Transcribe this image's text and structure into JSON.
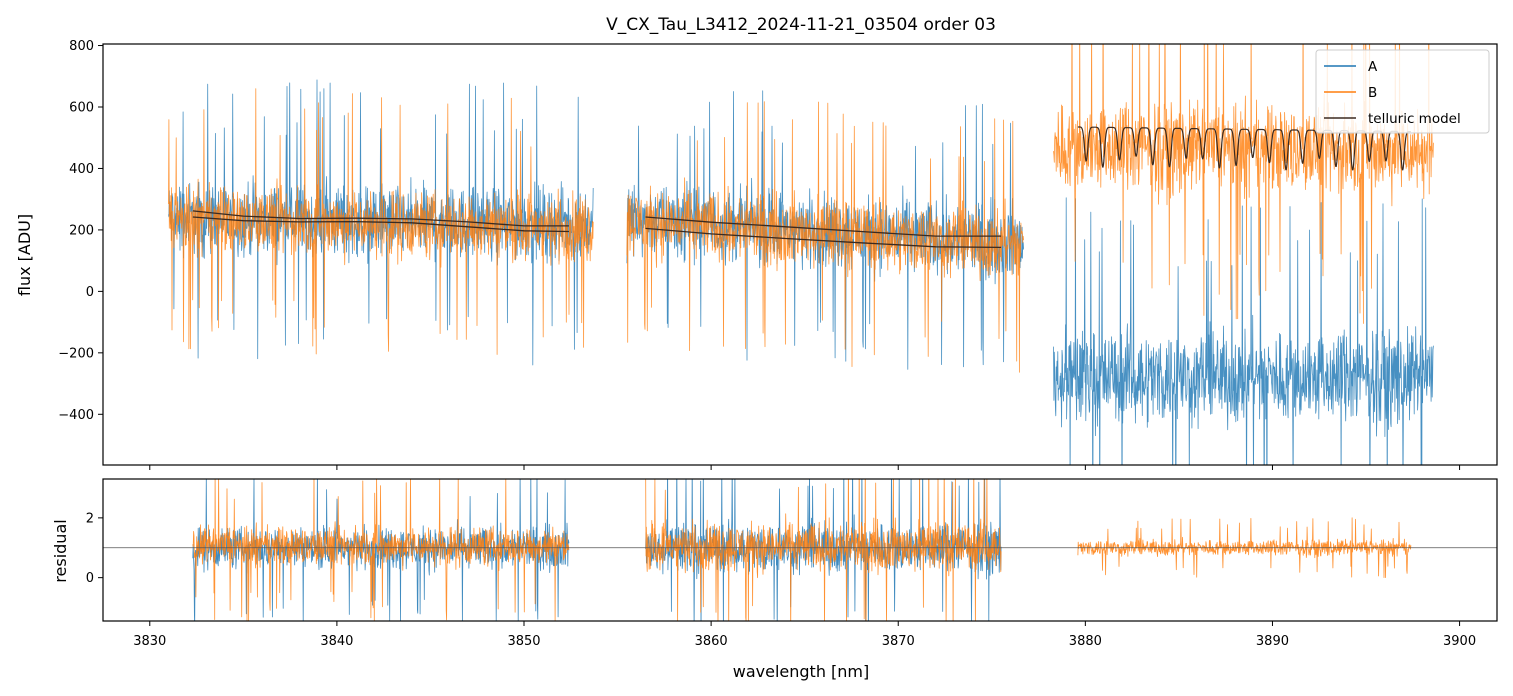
{
  "colors": {
    "series_a": "#1f77b4",
    "series_b": "#ff7f0e",
    "telluric_model": "#3b2a20",
    "reference_line": "#555555",
    "frame": "#000000",
    "background": "#ffffff"
  },
  "chart_data": [
    {
      "type": "line",
      "panel": "spectrum",
      "title": "V_CX_Tau_L3412_2024-11-21_03504  order 03",
      "xlabel": "",
      "ylabel": "flux [ADU]",
      "xlim": [
        3827.5,
        3902.0
      ],
      "ylim": [
        -565,
        805
      ],
      "xticks": [
        3830,
        3840,
        3850,
        3860,
        3870,
        3880,
        3890,
        3900
      ],
      "yticks": [
        -400,
        -200,
        0,
        200,
        400,
        600,
        800
      ],
      "ytick_labels": [
        "−400",
        "−200",
        "0",
        "200",
        "400",
        "600",
        "800"
      ],
      "legend": {
        "position": "top-right",
        "entries": [
          "A",
          "B",
          "telluric model"
        ]
      },
      "series": [
        {
          "name": "A",
          "segments": [
            {
              "x_start": 3831.0,
              "x_end": 3853.7,
              "center_start": 240,
              "center_end": 215,
              "spread": 170
            },
            {
              "x_start": 3855.5,
              "x_end": 3876.7,
              "center_start": 235,
              "center_end": 160,
              "spread": 170
            },
            {
              "x_start": 3878.3,
              "x_end": 3898.6,
              "center_start": -280,
              "center_end": -280,
              "spread": 220
            }
          ]
        },
        {
          "name": "B",
          "segments": [
            {
              "x_start": 3831.0,
              "x_end": 3853.7,
              "center_start": 235,
              "center_end": 205,
              "spread": 160
            },
            {
              "x_start": 3855.5,
              "x_end": 3876.7,
              "center_start": 230,
              "center_end": 150,
              "spread": 160
            },
            {
              "x_start": 3878.3,
              "x_end": 3898.6,
              "center_start": 470,
              "center_end": 455,
              "spread": 210
            }
          ]
        },
        {
          "name": "telluric model",
          "segments": [
            {
              "x": [
                3832.3,
                3835,
                3838,
                3841,
                3844,
                3847,
                3850,
                3852.4
              ],
              "y": [
                262,
                245,
                237,
                238,
                236,
                226,
                213,
                213
              ]
            },
            {
              "x": [
                3832.3,
                3835,
                3838,
                3841,
                3844,
                3847,
                3850,
                3852.4
              ],
              "y": [
                242,
                230,
                226,
                227,
                223,
                210,
                197,
                195
              ]
            },
            {
              "x": [
                3856.5,
                3860,
                3864,
                3868,
                3872,
                3875.5
              ],
              "y": [
                242,
                225,
                210,
                195,
                180,
                180
              ]
            },
            {
              "x": [
                3856.5,
                3860,
                3864,
                3868,
                3872,
                3875.5
              ],
              "y": [
                205,
                187,
                172,
                158,
                145,
                143
              ]
            },
            {
              "x_start": 3879.6,
              "x_end": 3897.4,
              "continuum": 535,
              "line_depth": 130,
              "line_count": 20
            }
          ]
        }
      ]
    },
    {
      "type": "line",
      "panel": "residual",
      "xlabel": "wavelength [nm]",
      "ylabel": "residual",
      "xlim": [
        3827.5,
        3902.0
      ],
      "ylim": [
        -1.45,
        3.3
      ],
      "xticks": [
        3830,
        3840,
        3850,
        3860,
        3870,
        3880,
        3890,
        3900
      ],
      "xtick_labels": [
        "3830",
        "3840",
        "3850",
        "3860",
        "3870",
        "3880",
        "3890",
        "3900"
      ],
      "yticks": [
        0,
        2
      ],
      "ytick_labels": [
        "0",
        "2"
      ],
      "reference_y": 1.0,
      "series": [
        {
          "name": "A",
          "segments": [
            {
              "x_start": 3832.3,
              "x_end": 3852.4,
              "center": 1.0,
              "spread": 1.0
            },
            {
              "x_start": 3856.5,
              "x_end": 3875.5,
              "center": 1.0,
              "spread": 1.2
            }
          ]
        },
        {
          "name": "B",
          "segments": [
            {
              "x_start": 3832.3,
              "x_end": 3852.4,
              "center": 1.05,
              "spread": 0.95
            },
            {
              "x_start": 3856.5,
              "x_end": 3875.5,
              "center": 1.05,
              "spread": 1.15
            },
            {
              "x_start": 3879.6,
              "x_end": 3897.4,
              "center": 1.0,
              "spread": 0.38
            }
          ]
        }
      ]
    }
  ]
}
